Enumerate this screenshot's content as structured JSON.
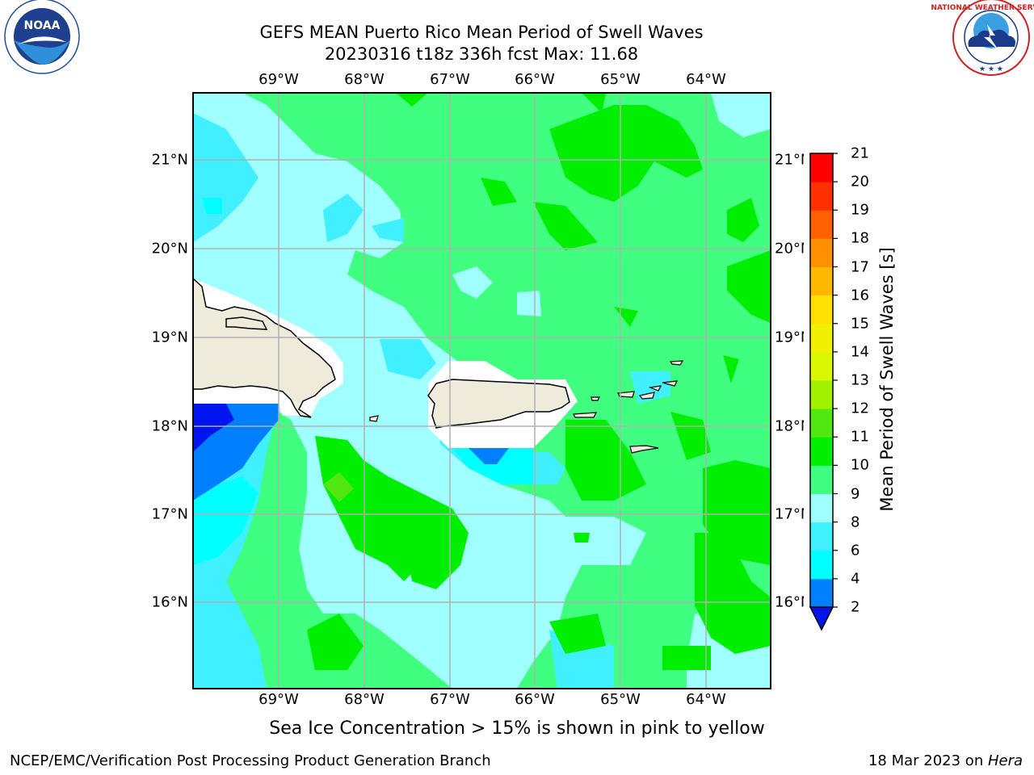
{
  "header": {
    "title_line1": "GEFS MEAN Puerto Rico Mean Period of Swell Waves",
    "title_line2": "20230316 t18z 336h fcst   Max: 11.68"
  },
  "logos": {
    "left": {
      "name": "NOAA",
      "ring_text": "NATIONAL OCEANIC AND ATMOSPHERIC ADMINISTRATION · U.S. DEPARTMENT OF COMMERCE"
    },
    "right": {
      "ring_text": "NATIONAL WEATHER SERVICE"
    }
  },
  "map": {
    "lon_labels": [
      "69°W",
      "68°W",
      "67°W",
      "66°W",
      "65°W",
      "64°W"
    ],
    "lat_labels": [
      "21°N",
      "20°N",
      "19°N",
      "18°N",
      "17°N",
      "16°N"
    ]
  },
  "colorbar": {
    "label": "Mean Period of Swell Waves [s]",
    "ticks": [
      "2",
      "4",
      "6",
      "8",
      "9",
      "10",
      "11",
      "12",
      "13",
      "14",
      "15",
      "16",
      "17",
      "18",
      "19",
      "20",
      "21"
    ],
    "colors": [
      "#0014f0",
      "#0080ff",
      "#00ffff",
      "#40f0ff",
      "#a0ffff",
      "#40ff80",
      "#00ee00",
      "#50e810",
      "#a0f000",
      "#d8f800",
      "#f0f000",
      "#ffe000",
      "#ffb800",
      "#ff9000",
      "#ff6000",
      "#ff3000",
      "#ff0000"
    ],
    "extend_color": "#0014f0"
  },
  "caption": "Sea Ice Concentration > 15% is shown in pink to yellow",
  "footer": {
    "left": "NCEP/EMC/Verification Post Processing Product Generation Branch",
    "right_date": "18 Mar 2023 on ",
    "right_host": "Hera"
  }
}
